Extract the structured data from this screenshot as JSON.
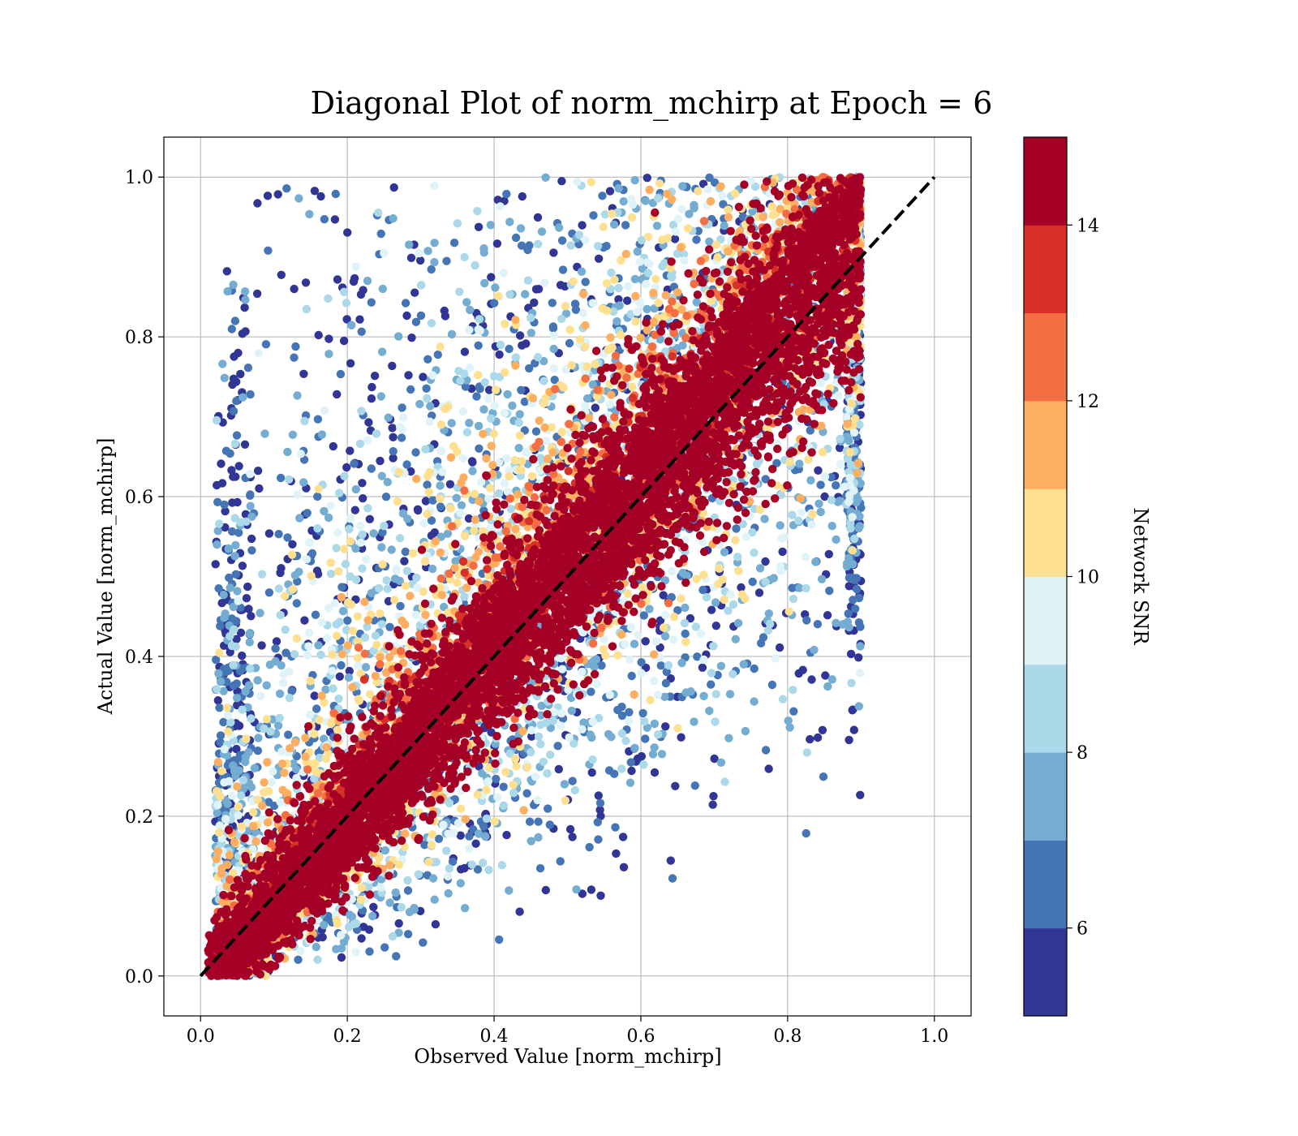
{
  "chart_data": {
    "type": "scatter",
    "title": "Diagonal Plot of norm_mchirp at Epoch = 6",
    "xlabel": "Observed Value [norm_mchirp]",
    "ylabel": "Actual Value [norm_mchirp]",
    "xlim": [
      -0.05,
      1.05
    ],
    "ylim": [
      -0.05,
      1.05
    ],
    "xticks": [
      0.0,
      0.2,
      0.4,
      0.6,
      0.8,
      1.0
    ],
    "yticks": [
      0.0,
      0.2,
      0.4,
      0.6,
      0.8,
      1.0
    ],
    "xtick_labels": [
      "0.0",
      "0.2",
      "0.4",
      "0.6",
      "0.8",
      "1.0"
    ],
    "ytick_labels": [
      "0.0",
      "0.2",
      "0.4",
      "0.6",
      "0.8",
      "1.0"
    ],
    "grid": true,
    "reference_line": {
      "x": [
        0.0,
        1.0
      ],
      "y": [
        0.0,
        1.0
      ],
      "style": "dashed",
      "color": "#000000"
    },
    "colorbar": {
      "label": "Network SNR",
      "range": [
        5,
        15
      ],
      "ticks": [
        6,
        8,
        10,
        12,
        14
      ],
      "tick_labels": [
        "6",
        "8",
        "10",
        "12",
        "14"
      ],
      "colors": [
        "#313695",
        "#4575b4",
        "#74add1",
        "#abd9e9",
        "#e0f3f8",
        "#fee090",
        "#fdae61",
        "#f46d43",
        "#d73027",
        "#a50026"
      ]
    },
    "points_description_note": null
  }
}
